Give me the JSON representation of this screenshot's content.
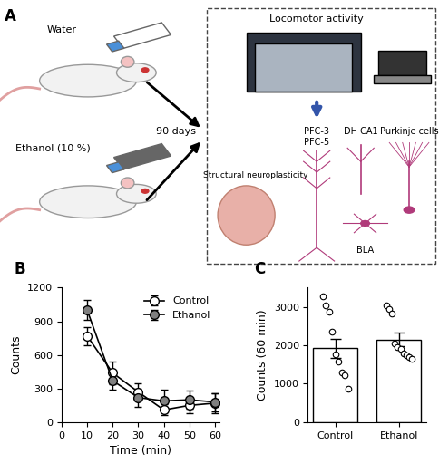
{
  "diagram": {
    "label": "A",
    "water": "Water",
    "ethanol": "Ethanol (10 %)",
    "duration": "90 days",
    "test": "Locomotor activity",
    "outcome": "Structural neuroplasticity",
    "neurons": [
      "PFC-3",
      "PFC-5",
      "DH CA1",
      "Purkinje cells",
      "BLA"
    ]
  },
  "chart_data": [
    {
      "type": "line",
      "title": "B",
      "x_label": "Time (min)",
      "y_label": "Counts",
      "x": [
        10,
        20,
        30,
        40,
        50,
        60
      ],
      "series": [
        {
          "name": "Control",
          "color": "#ffffff",
          "marker": "o",
          "line_style": "solid",
          "values": [
            770,
            440,
            270,
            110,
            150,
            170
          ],
          "errors": [
            80,
            100,
            80,
            50,
            70,
            90
          ]
        },
        {
          "name": "Ethanol",
          "color": "#7f7f7f",
          "marker": "o",
          "line_style": "solid",
          "values": [
            1000,
            370,
            220,
            190,
            200,
            180
          ],
          "errors": [
            90,
            80,
            80,
            100,
            80,
            80
          ]
        }
      ],
      "xlim": [
        0,
        62
      ],
      "xticks": [
        0,
        10,
        20,
        30,
        40,
        50,
        60
      ],
      "ylim": [
        0,
        1200
      ],
      "yticks": [
        0,
        300,
        600,
        900,
        1200
      ],
      "legend": "upper right"
    },
    {
      "type": "bar",
      "title": "C",
      "y_label": "Counts (60 min)",
      "categories": [
        "Control",
        "Ethanol"
      ],
      "values": [
        1920,
        2150
      ],
      "errors": [
        240,
        170
      ],
      "colors": [
        "#ffffff",
        "#ffffff"
      ],
      "points": [
        [
          3270,
          3050,
          2880,
          2350,
          1760,
          1580,
          1290,
          1230,
          870
        ],
        [
          3040,
          2950,
          2820,
          2050,
          1950,
          1900,
          1800,
          1750,
          1700,
          1650
        ]
      ],
      "ylim": [
        0,
        3500
      ],
      "yticks": [
        0,
        1000,
        2000,
        3000
      ]
    }
  ]
}
